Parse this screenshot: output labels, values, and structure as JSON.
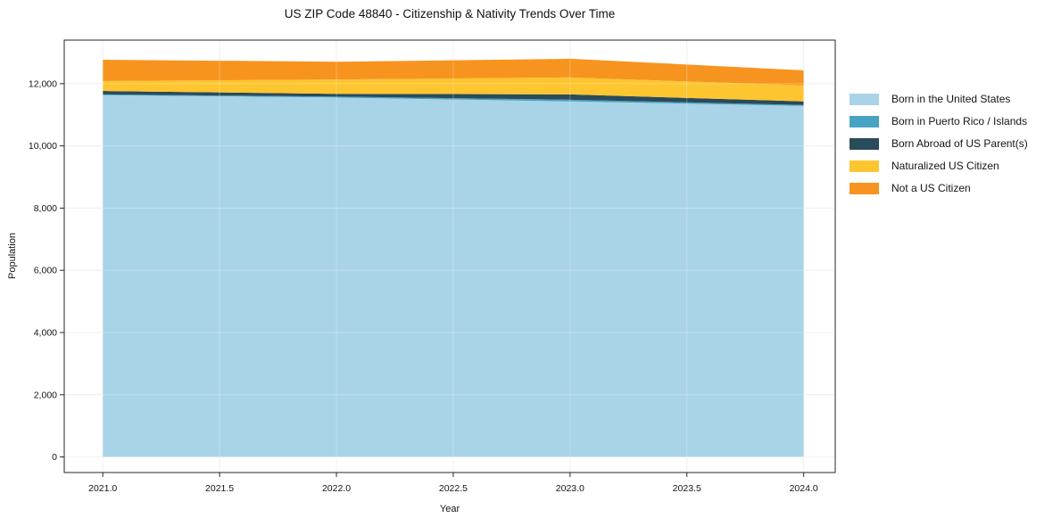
{
  "chart_data": {
    "type": "area",
    "stacked": true,
    "title": "US ZIP Code 48840 - Citizenship & Nativity Trends Over Time",
    "xlabel": "Year",
    "ylabel": "Population",
    "x": [
      2021.0,
      2022.0,
      2023.0,
      2024.0
    ],
    "series": [
      {
        "name": "Born in the United States",
        "color": "#a9d3e7",
        "values": [
          11630,
          11555,
          11430,
          11285
        ]
      },
      {
        "name": "Born in Puerto Rico / Islands",
        "color": "#47a3c2",
        "values": [
          25,
          30,
          55,
          30
        ]
      },
      {
        "name": "Born Abroad of US Parent(s)",
        "color": "#2b4a5a",
        "values": [
          110,
          90,
          170,
          115
        ]
      },
      {
        "name": "Naturalized US Citizen",
        "color": "#fdc52f",
        "values": [
          320,
          460,
          545,
          515
        ]
      },
      {
        "name": "Not a US Citizen",
        "color": "#f7941f",
        "values": [
          685,
          570,
          600,
          485
        ]
      }
    ],
    "xlim": [
      2020.835,
      2024.135
    ],
    "ylim": [
      -500,
      13400
    ],
    "xticks": [
      2021.0,
      2021.5,
      2022.0,
      2022.5,
      2023.0,
      2023.5,
      2024.0
    ],
    "xtick_labels": [
      "2021.0",
      "2021.5",
      "2022.0",
      "2022.5",
      "2023.0",
      "2023.5",
      "2024.0"
    ],
    "yticks": [
      0,
      2000,
      4000,
      6000,
      8000,
      10000,
      12000
    ],
    "ytick_labels": [
      "0",
      "2,000",
      "4,000",
      "6,000",
      "8,000",
      "10,000",
      "12,000"
    ],
    "grid": true,
    "legend_position": "right"
  }
}
